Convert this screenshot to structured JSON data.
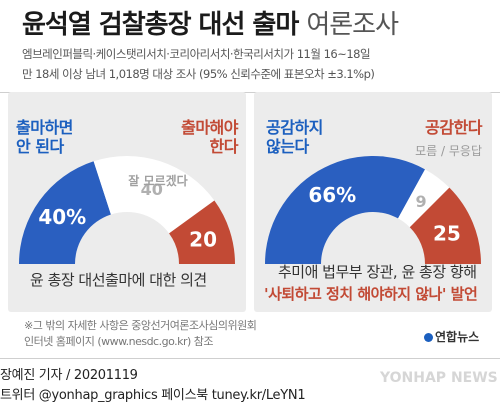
{
  "title": {
    "main": "윤석열 검찰총장 대선 출마",
    "sub": "여론조사"
  },
  "survey": {
    "line1": "엠브레인퍼블릭·케이스탯리서치·코리아리서치·한국리서치가 11월 16~18일",
    "line2": "만 18세 이상 남녀 1,018명 대상 조사 (95% 신뢰수준에 표본오차 ±3.1%p)"
  },
  "chart_data": [
    {
      "type": "pie",
      "title": "윤 총장 대선출마에 대한 의견",
      "slices": [
        {
          "label": [
            "출마하면",
            "안 된다"
          ],
          "value": 40,
          "color": "#2a5fc0"
        },
        {
          "label": [
            "잘 모르겠다"
          ],
          "value": 40,
          "color": "#ffffff"
        },
        {
          "label": [
            "출마해야",
            "한다"
          ],
          "value": 20,
          "color": "#c24a35"
        }
      ]
    },
    {
      "type": "pie",
      "title": "추미애 법무부 장관, 윤 총장 향해",
      "title_line2": "'사퇴하고 정치 해야하지 않나' 발언",
      "slices": [
        {
          "label": [
            "공감하지",
            "않는다"
          ],
          "value": 66,
          "color": "#2a5fc0"
        },
        {
          "label": [
            "모름 / 무응답"
          ],
          "value": 9,
          "color": "#ffffff"
        },
        {
          "label": [
            "공감한다"
          ],
          "value": 25,
          "color": "#c24a35"
        }
      ]
    }
  ],
  "captions": {
    "left": "윤 총장 대선출마에 대한 의견",
    "right_line1": "추미애 법무부 장관, 윤 총장 향해",
    "right_line2": "'사퇴하고 정치 해야하지 않나' 발언"
  },
  "note": {
    "line1": "※그 밖의 자세한 사항은 중앙선거여론조사심의위원회",
    "line2": "인터넷 홈페이지 (www.nesdc.go.kr) 참조"
  },
  "logo": "연합뉴스",
  "footer": {
    "credit": "장예진 기자 / 20201119",
    "social": "트위터 @yonhap_graphics  페이스북 tuney.kr/LeYN1"
  },
  "watermark": "YONHAP NEWS"
}
